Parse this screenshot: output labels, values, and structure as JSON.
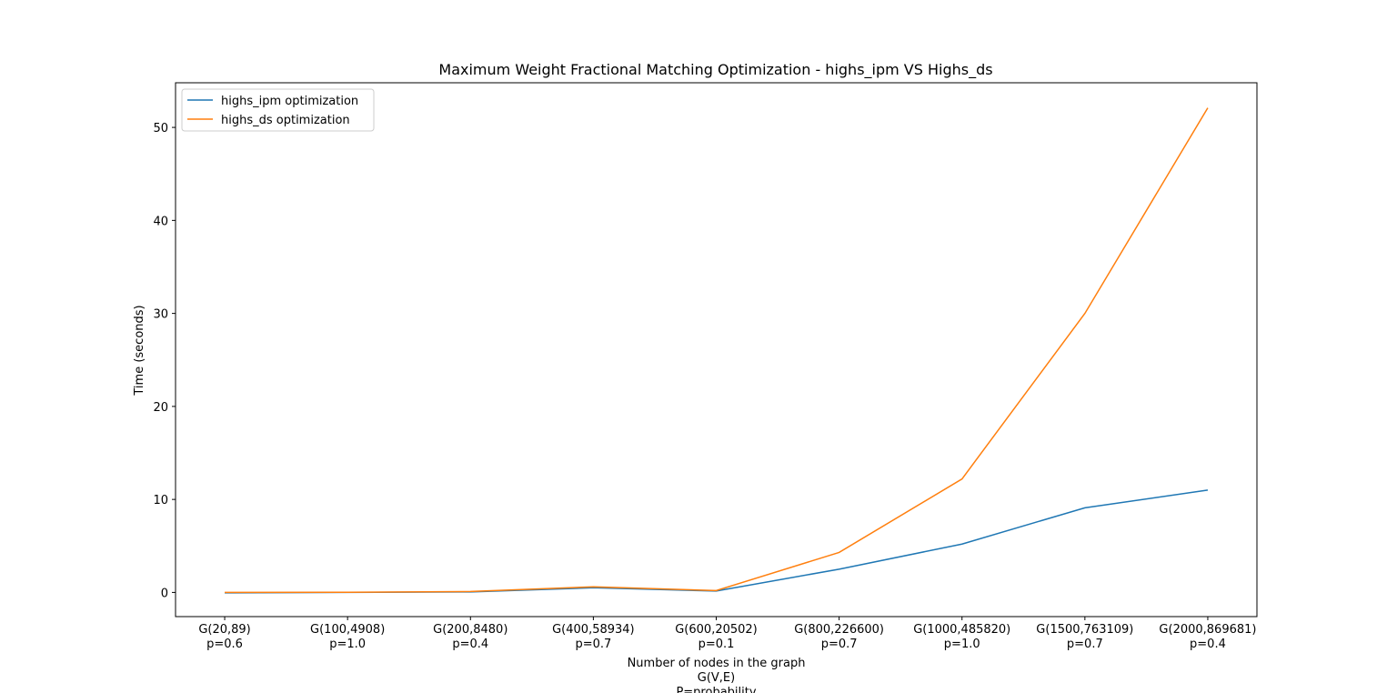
{
  "chart_data": {
    "type": "line",
    "title": "Maximum Weight Fractional Matching Optimization - highs_ipm VS Highs_ds",
    "xlabel": "Number of nodes in the graph\nG(V,E)\nP=probability",
    "ylabel": "Time (seconds)",
    "categories": [
      "G(20,89)\np=0.6",
      "G(100,4908)\np=1.0",
      "G(200,8480)\np=0.4",
      "G(400,58934)\np=0.7",
      "G(600,20502)\np=0.1",
      "G(800,226600)\np=0.7",
      "G(1000,485820)\np=1.0",
      "G(1500,763109)\np=0.7",
      "G(2000,869681)\np=0.4"
    ],
    "series": [
      {
        "name": "highs_ipm optimization",
        "color": "#1f77b4",
        "values": [
          -0.05,
          0.0,
          0.05,
          0.5,
          0.15,
          2.5,
          5.2,
          9.1,
          11.0
        ]
      },
      {
        "name": "highs_ds optimization",
        "color": "#ff7f0e",
        "values": [
          0.0,
          0.02,
          0.1,
          0.6,
          0.2,
          4.3,
          12.2,
          30.0,
          52.1
        ]
      }
    ],
    "ylim": [
      -2.6,
      54.8
    ],
    "yticks": [
      0,
      10,
      20,
      30,
      40,
      50
    ],
    "grid": false,
    "legend": "upper left"
  }
}
